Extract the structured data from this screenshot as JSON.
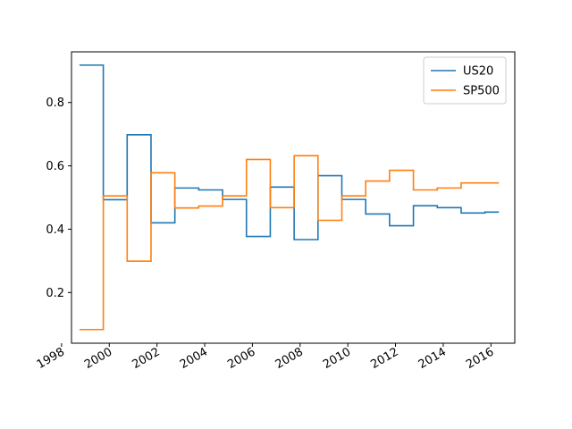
{
  "chart_data": {
    "type": "line",
    "drawstyle": "steps",
    "x": [
      "1998-10",
      "1999-10",
      "2000-10",
      "2001-10",
      "2002-10",
      "2003-10",
      "2004-10",
      "2005-10",
      "2006-10",
      "2007-10",
      "2008-10",
      "2009-10",
      "2010-10",
      "2011-10",
      "2012-10",
      "2013-10",
      "2014-10",
      "2015-10",
      "2016-05"
    ],
    "series": [
      {
        "name": "US20",
        "color": "#1f77b4",
        "values": [
          0.918,
          0.493,
          0.698,
          0.42,
          0.53,
          0.524,
          0.494,
          0.377,
          0.533,
          0.367,
          0.569,
          0.494,
          0.448,
          0.411,
          0.474,
          0.468,
          0.451,
          0.454,
          0.454
        ]
      },
      {
        "name": "SP500",
        "color": "#ff7f0e",
        "values": [
          0.083,
          0.505,
          0.299,
          0.578,
          0.467,
          0.473,
          0.505,
          0.62,
          0.468,
          0.632,
          0.428,
          0.505,
          0.552,
          0.586,
          0.524,
          0.53,
          0.546,
          0.546,
          0.546
        ]
      }
    ],
    "xticks": [
      "1998",
      "2000",
      "2002",
      "2004",
      "2006",
      "2008",
      "2010",
      "2012",
      "2014",
      "2016"
    ],
    "yticks": [
      0.2,
      0.4,
      0.6,
      0.8
    ],
    "ylim": [
      0.04,
      0.96
    ],
    "xlim": [
      "1998-06",
      "2017-01"
    ],
    "legend": "upper right",
    "grid": false
  }
}
